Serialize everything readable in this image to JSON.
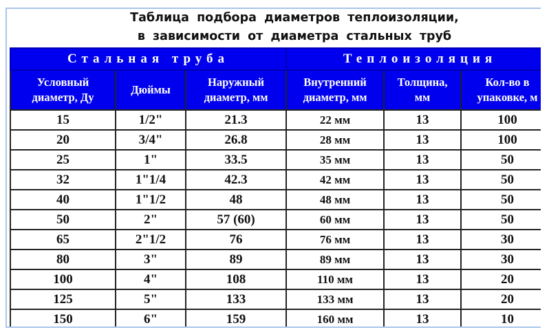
{
  "title": {
    "line1": "Таблица подбора диаметров теплоизоляции,",
    "line2": "в зависимости от диаметра стальных труб"
  },
  "groups": [
    "Стальная труба",
    "Теплоизоляция"
  ],
  "columns": [
    [
      "Условный",
      "диаметр, Ду"
    ],
    [
      "Дюймы"
    ],
    [
      "Наружный",
      "диаметр, мм"
    ],
    [
      "Внутренний",
      "диаметр, мм"
    ],
    [
      "Толщина,",
      "мм"
    ],
    [
      "Кол-во в",
      "упаковке, м"
    ]
  ],
  "rows": [
    [
      "15",
      "1/2\"",
      "21.3",
      "22 мм",
      "13",
      "100"
    ],
    [
      "20",
      "3/4\"",
      "26.8",
      "28 мм",
      "13",
      "100"
    ],
    [
      "25",
      "1\"",
      "33.5",
      "35 мм",
      "13",
      "50"
    ],
    [
      "32",
      "1\"1/4",
      "42.3",
      "42 мм",
      "13",
      "50"
    ],
    [
      "40",
      "1\"1/2",
      "48",
      "48 мм",
      "13",
      "50"
    ],
    [
      "50",
      "2\"",
      "57 (60)",
      "60 мм",
      "13",
      "50"
    ],
    [
      "65",
      "2\"1/2",
      "76",
      "76 мм",
      "13",
      "30"
    ],
    [
      "80",
      "3\"",
      "89",
      "89 мм",
      "13",
      "30"
    ],
    [
      "100",
      "4\"",
      "108",
      "110 мм",
      "13",
      "20"
    ],
    [
      "125",
      "5\"",
      "133",
      "133 мм",
      "13",
      "20"
    ],
    [
      "150",
      "6\"",
      "159",
      "160 мм",
      "13",
      "10"
    ]
  ],
  "colors": {
    "header_bg": "#0000ee",
    "header_text": "#ffffff",
    "frame": "#a9c4ea"
  }
}
